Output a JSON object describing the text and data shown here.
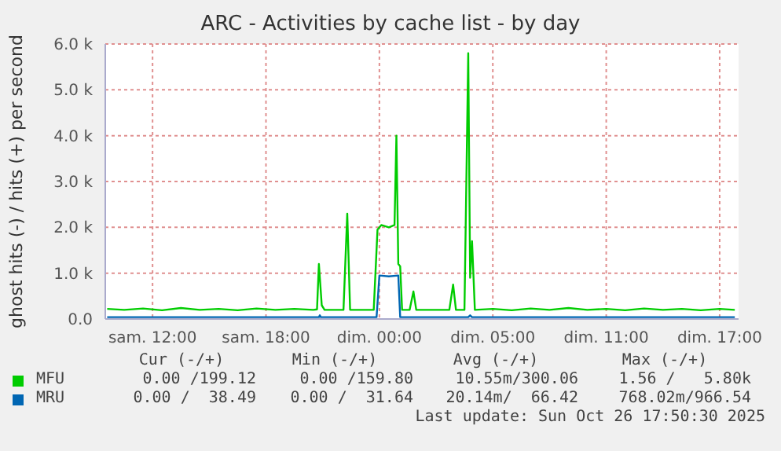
{
  "chart_data": {
    "type": "line",
    "title": "ARC - Activities by cache list - by day",
    "ylabel": "ghost hits (-) / hits (+) per second",
    "xlim": [
      "2025-10-25T07:30",
      "2025-10-26T17:00"
    ],
    "xticks": [
      {
        "value": "2025-10-25T10:00",
        "label": "sam. 12:00"
      },
      {
        "value": "2025-10-25T16:00",
        "label": "sam. 18:00"
      },
      {
        "value": "2025-10-25T22:00",
        "label": "dim. 00:00"
      },
      {
        "value": "2025-10-26T04:00",
        "label": "dim. 05:00"
      },
      {
        "value": "2025-10-26T10:00",
        "label": "dim. 11:00"
      },
      {
        "value": "2025-10-26T16:00",
        "label": "dim. 17:00"
      }
    ],
    "ylim": [
      0,
      6000
    ],
    "yticks": [
      {
        "value": 0,
        "label": "0.0"
      },
      {
        "value": 1000,
        "label": "1.0 k"
      },
      {
        "value": 2000,
        "label": "2.0 k"
      },
      {
        "value": 3000,
        "label": "3.0 k"
      },
      {
        "value": 4000,
        "label": "4.0 k"
      },
      {
        "value": 5000,
        "label": "5.0 k"
      },
      {
        "value": 6000,
        "label": "6.0 k"
      }
    ],
    "grid": true,
    "legend": "bottom",
    "marker": "none",
    "line_style": "solid",
    "series": [
      {
        "name": "MFU",
        "color": "#00cc00",
        "x": [
          "2025-10-25T07:36",
          "2025-10-25T08:30",
          "2025-10-25T09:30",
          "2025-10-25T10:30",
          "2025-10-25T11:30",
          "2025-10-25T12:30",
          "2025-10-25T13:30",
          "2025-10-25T14:30",
          "2025-10-25T15:30",
          "2025-10-25T16:30",
          "2025-10-25T17:30",
          "2025-10-25T18:30",
          "2025-10-25T18:42",
          "2025-10-25T18:48",
          "2025-10-25T18:57",
          "2025-10-25T19:06",
          "2025-10-25T20:06",
          "2025-10-25T20:18",
          "2025-10-25T20:27",
          "2025-10-25T21:42",
          "2025-10-25T21:54",
          "2025-10-25T22:06",
          "2025-10-25T22:30",
          "2025-10-25T22:48",
          "2025-10-25T22:54",
          "2025-10-25T23:00",
          "2025-10-25T23:06",
          "2025-10-25T23:12",
          "2025-10-25T23:36",
          "2025-10-25T23:48",
          "2025-10-25T23:57",
          "2025-10-26T01:42",
          "2025-10-26T01:54",
          "2025-10-26T02:03",
          "2025-10-26T02:30",
          "2025-10-26T02:42",
          "2025-10-26T02:48",
          "2025-10-26T02:54",
          "2025-10-26T03:03",
          "2025-10-26T04:00",
          "2025-10-26T05:00",
          "2025-10-26T06:00",
          "2025-10-26T07:00",
          "2025-10-26T08:00",
          "2025-10-26T09:00",
          "2025-10-26T10:00",
          "2025-10-26T11:00",
          "2025-10-26T12:00",
          "2025-10-26T13:00",
          "2025-10-26T14:00",
          "2025-10-26T15:00",
          "2025-10-26T16:00",
          "2025-10-26T16:48"
        ],
        "values": [
          220,
          200,
          230,
          190,
          240,
          200,
          220,
          190,
          230,
          200,
          220,
          200,
          210,
          1200,
          300,
          200,
          200,
          2300,
          200,
          200,
          1950,
          2050,
          2000,
          2050,
          4000,
          1200,
          1150,
          200,
          200,
          600,
          200,
          200,
          750,
          200,
          200,
          5800,
          900,
          1700,
          200,
          220,
          190,
          230,
          200,
          240,
          200,
          220,
          190,
          230,
          200,
          220,
          190,
          220,
          200
        ]
      },
      {
        "name": "MRU",
        "color": "#0066b3",
        "x": [
          "2025-10-25T07:36",
          "2025-10-25T18:48",
          "2025-10-25T18:51",
          "2025-10-25T18:54",
          "2025-10-25T21:51",
          "2025-10-25T22:00",
          "2025-10-25T22:30",
          "2025-10-25T23:00",
          "2025-10-25T23:06",
          "2025-10-26T02:42",
          "2025-10-26T02:48",
          "2025-10-26T02:54",
          "2025-10-26T16:48"
        ],
        "values": [
          40,
          40,
          80,
          40,
          40,
          950,
          930,
          950,
          40,
          40,
          80,
          40,
          40
        ]
      }
    ],
    "annotations": [
      "Cur (-/+)",
      "Min (-/+)",
      "Avg (-/+)",
      "Max (-/+)",
      "0.00 /199.12",
      "0.00 /159.80",
      "10.55m/300.06",
      "1.56 /   5.80k",
      "0.00 /  38.49",
      "0.00 /  31.64",
      "20.14m/  66.42",
      "768.02m/966.54",
      "Last update: Sun Oct 26 17:50:30 2025"
    ]
  }
}
